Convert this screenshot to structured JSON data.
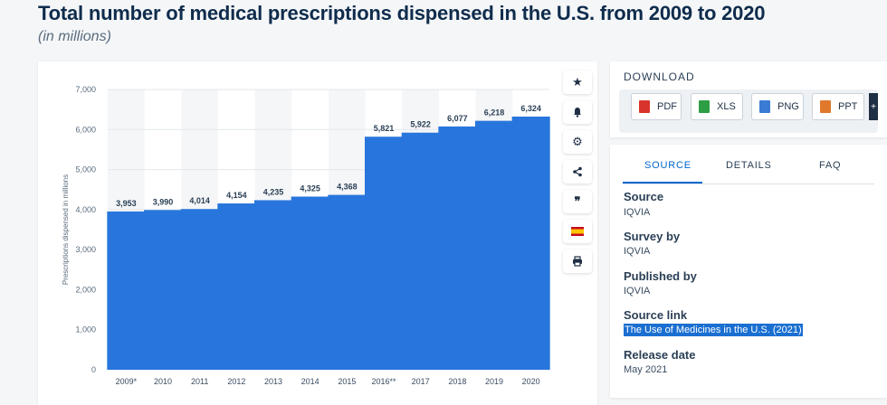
{
  "header": {
    "title": "Total number of medical prescriptions dispensed in the U.S. from 2009 to 2020",
    "subtitle": "(in millions)"
  },
  "chart_data": {
    "type": "bar",
    "categories": [
      "2009*",
      "2010",
      "2011",
      "2012",
      "2013",
      "2014",
      "2015",
      "2016**",
      "2017",
      "2018",
      "2019",
      "2020"
    ],
    "values": [
      3953,
      3990,
      4014,
      4154,
      4235,
      4325,
      4368,
      5821,
      5922,
      6077,
      6218,
      6324
    ],
    "value_labels": [
      "3,953",
      "3,990",
      "4,014",
      "4,154",
      "4,235",
      "4,325",
      "4,368",
      "5,821",
      "5,922",
      "6,077",
      "6,218",
      "6,324"
    ],
    "ylabel": "Prescriptions dispensed in millions",
    "ylim": [
      0,
      7000
    ],
    "yticks": [
      0,
      1000,
      2000,
      3000,
      4000,
      5000,
      6000,
      7000
    ],
    "ytick_labels": [
      "0",
      "1,000",
      "2,000",
      "3,000",
      "4,000",
      "5,000",
      "6,000",
      "7,000"
    ],
    "bar_color": "#2876dd",
    "grid": true,
    "alternating_column_shading": true
  },
  "toolbar": {
    "items": [
      {
        "name": "star-icon",
        "glyph": "★"
      },
      {
        "name": "bell-icon",
        "glyph": "🔔"
      },
      {
        "name": "gear-icon",
        "glyph": "⚙"
      },
      {
        "name": "share-icon",
        "glyph": "<"
      },
      {
        "name": "quote-icon",
        "glyph": "❞"
      },
      {
        "name": "spain-flag-icon",
        "glyph": ""
      },
      {
        "name": "print-icon",
        "glyph": "⎙"
      }
    ]
  },
  "download": {
    "title": "DOWNLOAD",
    "buttons": [
      {
        "label": "PDF",
        "color": "#d9342b"
      },
      {
        "label": "XLS",
        "color": "#2e9e44"
      },
      {
        "label": "PNG",
        "color": "#3a7bd5"
      },
      {
        "label": "PPT",
        "color": "#e0792b"
      }
    ],
    "more": "+"
  },
  "info": {
    "tabs": [
      "SOURCE",
      "DETAILS",
      "FAQ"
    ],
    "fields": [
      {
        "label": "Source",
        "value": "IQVIA"
      },
      {
        "label": "Survey by",
        "value": "IQVIA"
      },
      {
        "label": "Published by",
        "value": "IQVIA"
      },
      {
        "label": "Source link",
        "value": "The Use of Medicines in the U.S. (2021)"
      },
      {
        "label": "Release date",
        "value": "May 2021"
      }
    ]
  }
}
